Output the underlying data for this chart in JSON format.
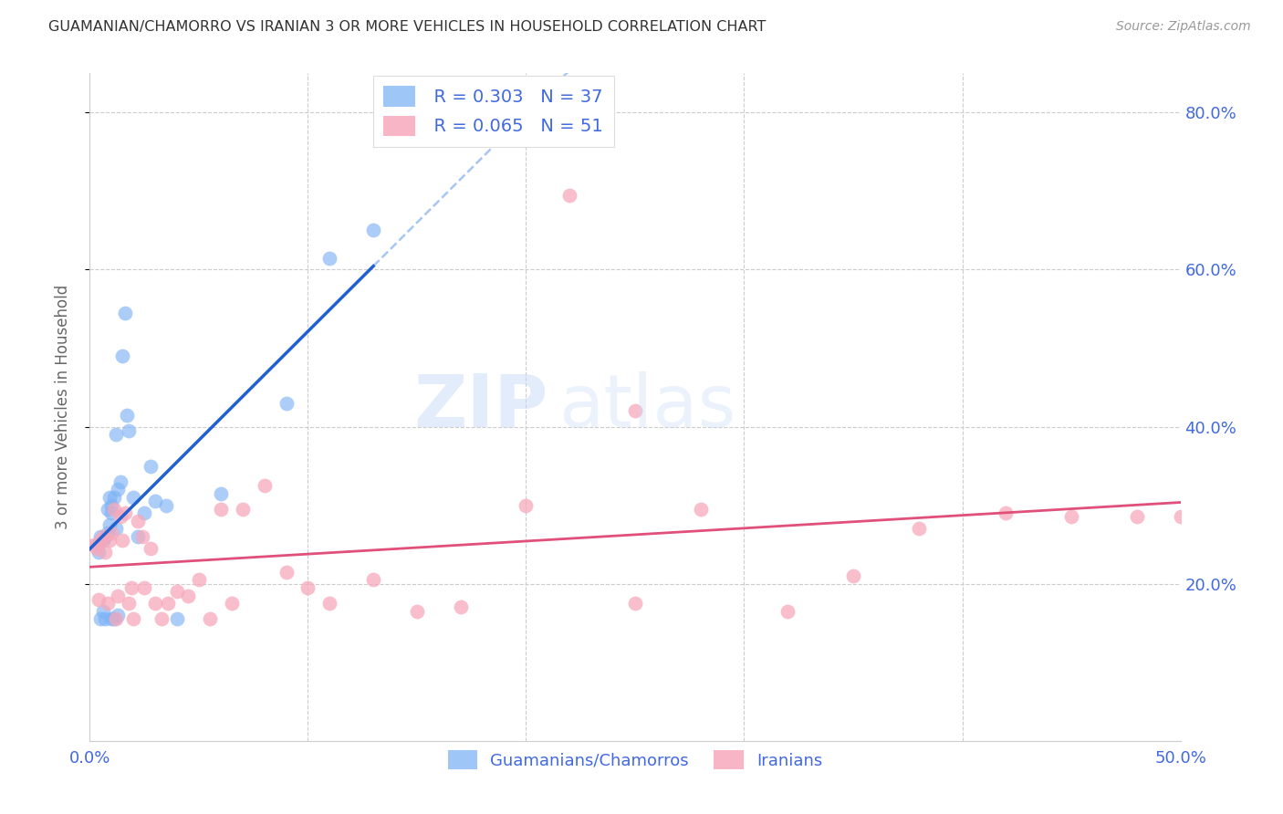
{
  "title": "GUAMANIAN/CHAMORRO VS IRANIAN 3 OR MORE VEHICLES IN HOUSEHOLD CORRELATION CHART",
  "source": "Source: ZipAtlas.com",
  "ylabel": "3 or more Vehicles in Household",
  "xlim": [
    0.0,
    0.5
  ],
  "ylim": [
    0.0,
    0.85
  ],
  "yticks": [
    0.2,
    0.4,
    0.6,
    0.8
  ],
  "ytick_labels": [
    "20.0%",
    "40.0%",
    "60.0%",
    "80.0%"
  ],
  "xticks": [
    0.0,
    0.1,
    0.2,
    0.3,
    0.4,
    0.5
  ],
  "xtick_labels": [
    "0.0%",
    "",
    "",
    "",
    "",
    "50.0%"
  ],
  "legend_blue_r": "R = 0.303",
  "legend_blue_n": "N = 37",
  "legend_pink_r": "R = 0.065",
  "legend_pink_n": "N = 51",
  "blue_color": "#7EB3F5",
  "pink_color": "#F7A8BB",
  "blue_line_color": "#2060D0",
  "pink_line_color": "#E0507A",
  "dashed_line_color": "#90B8F0",
  "watermark_zip": "ZIP",
  "watermark_atlas": "atlas",
  "tick_color": "#4169E1",
  "guamanians_x": [
    0.003,
    0.004,
    0.005,
    0.005,
    0.006,
    0.006,
    0.007,
    0.007,
    0.008,
    0.008,
    0.009,
    0.009,
    0.01,
    0.01,
    0.01,
    0.011,
    0.011,
    0.012,
    0.012,
    0.013,
    0.013,
    0.014,
    0.015,
    0.016,
    0.017,
    0.018,
    0.02,
    0.022,
    0.025,
    0.028,
    0.03,
    0.035,
    0.04,
    0.06,
    0.09,
    0.11,
    0.13
  ],
  "guamanians_y": [
    0.25,
    0.24,
    0.26,
    0.155,
    0.255,
    0.165,
    0.26,
    0.155,
    0.265,
    0.295,
    0.31,
    0.275,
    0.29,
    0.3,
    0.155,
    0.31,
    0.155,
    0.27,
    0.39,
    0.32,
    0.16,
    0.33,
    0.49,
    0.545,
    0.415,
    0.395,
    0.31,
    0.26,
    0.29,
    0.35,
    0.305,
    0.3,
    0.155,
    0.315,
    0.43,
    0.615,
    0.65
  ],
  "iranians_x": [
    0.002,
    0.003,
    0.004,
    0.005,
    0.006,
    0.007,
    0.008,
    0.009,
    0.01,
    0.011,
    0.012,
    0.013,
    0.014,
    0.015,
    0.016,
    0.018,
    0.019,
    0.02,
    0.022,
    0.024,
    0.025,
    0.028,
    0.03,
    0.033,
    0.036,
    0.04,
    0.045,
    0.05,
    0.055,
    0.06,
    0.065,
    0.07,
    0.08,
    0.09,
    0.1,
    0.11,
    0.13,
    0.15,
    0.17,
    0.2,
    0.22,
    0.25,
    0.28,
    0.32,
    0.35,
    0.38,
    0.42,
    0.45,
    0.48,
    0.5,
    0.25
  ],
  "iranians_y": [
    0.25,
    0.245,
    0.18,
    0.255,
    0.26,
    0.24,
    0.175,
    0.255,
    0.265,
    0.295,
    0.155,
    0.185,
    0.285,
    0.255,
    0.29,
    0.175,
    0.195,
    0.155,
    0.28,
    0.26,
    0.195,
    0.245,
    0.175,
    0.155,
    0.175,
    0.19,
    0.185,
    0.205,
    0.155,
    0.295,
    0.175,
    0.295,
    0.325,
    0.215,
    0.195,
    0.175,
    0.205,
    0.165,
    0.17,
    0.3,
    0.695,
    0.175,
    0.295,
    0.165,
    0.21,
    0.27,
    0.29,
    0.285,
    0.285,
    0.285,
    0.42
  ]
}
